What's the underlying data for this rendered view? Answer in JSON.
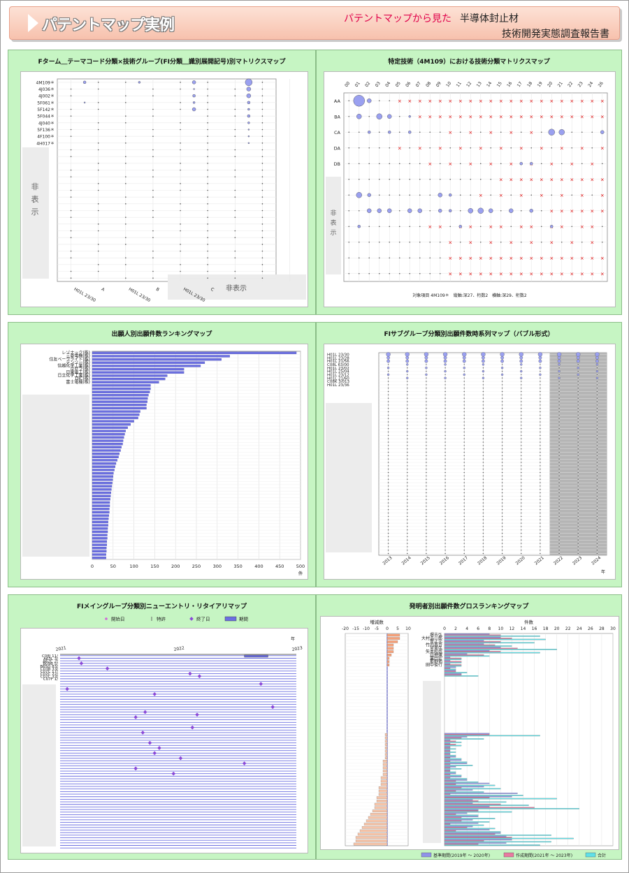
{
  "header": {
    "title": "パテントマップ実例",
    "subtitle_red": "パテントマップから見た",
    "subtitle_black": "半導体封止材",
    "subtitle_report": "技術開発実態調査報告書"
  },
  "colors": {
    "panel_bg": "#c6f5c3",
    "bubble": "#9aa0f0",
    "bar": "#6b6fe0",
    "cross": "#e00000",
    "header_pink": "#f7c1ad"
  },
  "panels": {
    "p1": {
      "title": "Fターム＿テーマコード分類×技術グループ(FI分類＿識別展開記号)別マトリクスマップ",
      "hidden_label": "非表示",
      "hidden_label_x": "非表示"
    },
    "p2": {
      "title": "特定技術（4M109）における技術分類マトリクスマップ",
      "hidden_label": "非表示",
      "footer": "対象項目 4M109＊　縦軸:深27、桁数2　横軸:深29、桁数2"
    },
    "p3": {
      "title": "出願人別出願件数ランキングマップ",
      "unit": "件"
    },
    "p4": {
      "title": "FIサブグループ分類別出願件数時系列マップ（バブル形式）",
      "unit": "年"
    },
    "p5": {
      "title": "FIメイングループ分類別ニューエントリ・リタイアリマップ",
      "unit": "年"
    },
    "p6": {
      "title": "発明者別出願件数グロスランキングマップ"
    }
  },
  "chart_data": [
    {
      "type": "scatter",
      "title": "Fターム＿テーマコード分類×技術グループ(FI分類＿識別展開記号)別マトリクスマップ",
      "y_labels": [
        "4M109＊",
        "4J036＊",
        "4J002＊",
        "5F061＊",
        "5F142＊",
        "5F044＊",
        "4J040＊",
        "5F136＊",
        "4F100＊",
        "4H017＊"
      ],
      "x_labels": [
        "H01L 23/30",
        "A",
        "H01L 23/30",
        "B",
        "H01L 23/30",
        "C"
      ],
      "bubbles": [
        [
          1,
          0,
          2
        ],
        [
          3,
          0,
          1.5
        ],
        [
          5,
          0,
          2.5
        ],
        [
          7,
          0,
          5
        ],
        [
          5,
          1,
          1
        ],
        [
          7,
          1,
          3
        ],
        [
          5,
          2,
          2
        ],
        [
          7,
          2,
          3
        ],
        [
          1,
          3,
          1
        ],
        [
          5,
          3,
          1.5
        ],
        [
          7,
          3,
          2
        ],
        [
          5,
          4,
          2.5
        ],
        [
          7,
          4,
          1.5
        ],
        [
          7,
          5,
          2
        ],
        [
          7,
          6,
          1.5
        ],
        [
          7,
          7,
          1
        ],
        [
          7,
          8,
          1
        ],
        [
          7,
          9,
          1
        ]
      ]
    },
    {
      "type": "scatter",
      "title": "特定技術（4M109）における技術分類マトリクスマップ",
      "x_labels": [
        "00",
        "01",
        "02",
        "03",
        "04",
        "05",
        "06",
        "07",
        "08",
        "09",
        "10",
        "11",
        "12",
        "13",
        "14",
        "15",
        "16",
        "17",
        "18",
        "19",
        "20",
        "21",
        "22",
        "23",
        "24",
        "26"
      ],
      "y_labels": [
        "AA",
        "BA",
        "CA",
        "DA",
        "DB"
      ],
      "bubbles": [
        [
          1,
          0,
          8
        ],
        [
          2,
          0,
          3
        ],
        [
          1,
          1,
          3.5
        ],
        [
          3,
          1,
          4
        ],
        [
          4,
          1,
          3
        ],
        [
          6,
          1,
          1.5
        ],
        [
          2,
          2,
          2
        ],
        [
          4,
          2,
          2
        ],
        [
          6,
          2,
          2
        ],
        [
          20,
          2,
          4.5
        ],
        [
          21,
          2,
          4
        ],
        [
          25,
          2,
          2.5
        ],
        [
          17,
          4,
          2
        ],
        [
          18,
          4,
          2
        ],
        [
          1,
          6,
          4
        ],
        [
          2,
          6,
          2.5
        ],
        [
          9,
          6,
          3
        ],
        [
          10,
          6,
          2
        ],
        [
          2,
          7,
          3
        ],
        [
          3,
          7,
          3
        ],
        [
          4,
          7,
          3
        ],
        [
          6,
          7,
          3
        ],
        [
          7,
          7,
          3
        ],
        [
          9,
          7,
          2.5
        ],
        [
          10,
          7,
          2
        ],
        [
          12,
          7,
          3.5
        ],
        [
          13,
          7,
          4
        ],
        [
          14,
          7,
          3
        ],
        [
          16,
          7,
          3
        ],
        [
          18,
          7,
          2.5
        ],
        [
          1,
          8,
          2
        ],
        [
          11,
          8,
          2
        ],
        [
          20,
          8,
          2
        ]
      ]
    },
    {
      "type": "bar",
      "title": "出願人別出願件数ランキングマップ",
      "categories": [
        "レゾナック(株)",
        "三菱電機(株)",
        "住友ベークライト(株)",
        "デンソー(株)",
        "信越化学工業(株)",
        "京セラ(株)",
        "日東電工(株)",
        "日立化学工業(株)",
        "DIC(株)",
        "富士電機(株)"
      ],
      "values": [
        490,
        330,
        310,
        270,
        260,
        220,
        220,
        180,
        175,
        160
      ],
      "hidden_values": [
        140,
        140,
        138,
        135,
        133,
        132,
        130,
        130,
        115,
        113,
        110,
        100,
        92,
        85,
        80,
        78,
        76,
        74,
        73,
        70,
        68,
        65,
        63,
        60,
        57,
        55,
        53,
        51,
        50,
        49,
        48,
        47,
        46,
        45,
        44,
        43,
        42,
        42,
        41,
        41,
        40,
        39,
        38,
        38,
        37,
        37,
        36,
        36,
        35,
        35,
        34,
        34,
        33,
        33
      ],
      "x_ticks": [
        0,
        50,
        100,
        150,
        200,
        250,
        300,
        350,
        400,
        450,
        500
      ],
      "xlim": [
        0,
        500
      ]
    },
    {
      "type": "scatter",
      "title": "FIサブグループ分類別出願件数時系列マップ（バブル形式）",
      "x_labels": [
        "2013",
        "2014",
        "2015",
        "2016",
        "2017",
        "2018",
        "2019",
        "2020",
        "2021",
        "2022",
        "2023",
        "2024"
      ],
      "y_labels": [
        "H01L 23/30",
        "H01L 23/28",
        "H01L 21/56",
        "C08L 63/00",
        "H01L 23/02",
        "H01L 25/04",
        "H01L 23/12",
        "H01L 21/60",
        "C08K 3/013",
        "H01L 23/36"
      ],
      "shaded_from": "2022"
    },
    {
      "type": "scatter",
      "title": "FIメイングループ分類別ニューエントリ・リタイアリマップ",
      "x_labels": [
        "2021",
        "2022",
        "2023"
      ],
      "y_labels": [
        "C08J 11/",
        "A63L 3/",
        "A62C 2/",
        "B09B 5/",
        "B65D 83/",
        "C03B 33/",
        "C07C 17/",
        "C07C 22/",
        "C07C 33/",
        "C07F 1/"
      ],
      "legend": [
        "開始日",
        "特許",
        "終了日",
        "期間"
      ],
      "end_markers": [
        [
          0.08,
          1
        ],
        [
          0.09,
          3
        ],
        [
          0.2,
          5
        ],
        [
          0.55,
          7
        ],
        [
          0.59,
          8
        ],
        [
          0.85,
          11
        ],
        [
          0.4,
          15
        ],
        [
          0.58,
          23
        ]
      ]
    },
    {
      "type": "bar",
      "title": "発明者別出願件数グロスランキングマップ",
      "left_axis_title": "増減数",
      "right_axis_title": "件数",
      "left_ticks": [
        -20,
        -15,
        -10,
        -5,
        0,
        5,
        10
      ],
      "right_ticks": [
        0,
        2,
        4,
        6,
        8,
        10,
        12,
        14,
        16,
        18,
        20,
        22,
        24,
        26,
        28,
        30
      ],
      "categories": [
        "堺吉弘",
        "大村浩一郎",
        "曽正元",
        "竹内真吾",
        "宮美弘",
        "矢本和也",
        "白神徹",
        "冨田宏",
        "那野佑",
        "田中俊行"
      ],
      "change": [
        6,
        6,
        5,
        3,
        3,
        3,
        2,
        1,
        1,
        1
      ],
      "base_period": [
        8,
        10,
        7,
        7,
        10,
        8,
        4,
        1,
        1,
        1
      ],
      "new_period": [
        10,
        12,
        10,
        9,
        13,
        10,
        7,
        3,
        3,
        3
      ],
      "total": [
        17,
        18,
        16,
        12,
        20,
        17,
        8,
        3,
        3,
        3
      ],
      "legend": [
        "基準期間(2019年 〜 2020年)",
        "作成期間(2021年 〜 2023年)",
        "合計"
      ]
    }
  ]
}
